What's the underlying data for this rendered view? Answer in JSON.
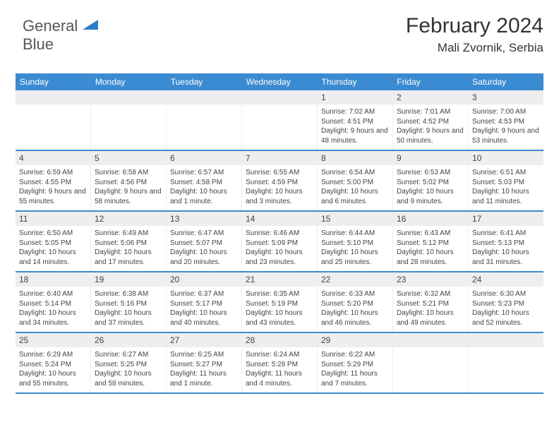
{
  "logo": {
    "line1": "General",
    "line2": "Blue"
  },
  "header": {
    "title": "February 2024",
    "location": "Mali Zvornik, Serbia"
  },
  "daynames": [
    "Sunday",
    "Monday",
    "Tuesday",
    "Wednesday",
    "Thursday",
    "Friday",
    "Saturday"
  ],
  "colors": {
    "header_bg": "#3b8bd2",
    "daynum_bg": "#eeeeee",
    "week_border": "#3b8bd2",
    "text": "#444444"
  },
  "weeks": [
    [
      {
        "n": "",
        "s": "",
        "ss": "",
        "d": ""
      },
      {
        "n": "",
        "s": "",
        "ss": "",
        "d": ""
      },
      {
        "n": "",
        "s": "",
        "ss": "",
        "d": ""
      },
      {
        "n": "",
        "s": "",
        "ss": "",
        "d": ""
      },
      {
        "n": "1",
        "s": "Sunrise: 7:02 AM",
        "ss": "Sunset: 4:51 PM",
        "d": "Daylight: 9 hours and 48 minutes."
      },
      {
        "n": "2",
        "s": "Sunrise: 7:01 AM",
        "ss": "Sunset: 4:52 PM",
        "d": "Daylight: 9 hours and 50 minutes."
      },
      {
        "n": "3",
        "s": "Sunrise: 7:00 AM",
        "ss": "Sunset: 4:53 PM",
        "d": "Daylight: 9 hours and 53 minutes."
      }
    ],
    [
      {
        "n": "4",
        "s": "Sunrise: 6:59 AM",
        "ss": "Sunset: 4:55 PM",
        "d": "Daylight: 9 hours and 55 minutes."
      },
      {
        "n": "5",
        "s": "Sunrise: 6:58 AM",
        "ss": "Sunset: 4:56 PM",
        "d": "Daylight: 9 hours and 58 minutes."
      },
      {
        "n": "6",
        "s": "Sunrise: 6:57 AM",
        "ss": "Sunset: 4:58 PM",
        "d": "Daylight: 10 hours and 1 minute."
      },
      {
        "n": "7",
        "s": "Sunrise: 6:55 AM",
        "ss": "Sunset: 4:59 PM",
        "d": "Daylight: 10 hours and 3 minutes."
      },
      {
        "n": "8",
        "s": "Sunrise: 6:54 AM",
        "ss": "Sunset: 5:00 PM",
        "d": "Daylight: 10 hours and 6 minutes."
      },
      {
        "n": "9",
        "s": "Sunrise: 6:53 AM",
        "ss": "Sunset: 5:02 PM",
        "d": "Daylight: 10 hours and 9 minutes."
      },
      {
        "n": "10",
        "s": "Sunrise: 6:51 AM",
        "ss": "Sunset: 5:03 PM",
        "d": "Daylight: 10 hours and 11 minutes."
      }
    ],
    [
      {
        "n": "11",
        "s": "Sunrise: 6:50 AM",
        "ss": "Sunset: 5:05 PM",
        "d": "Daylight: 10 hours and 14 minutes."
      },
      {
        "n": "12",
        "s": "Sunrise: 6:49 AM",
        "ss": "Sunset: 5:06 PM",
        "d": "Daylight: 10 hours and 17 minutes."
      },
      {
        "n": "13",
        "s": "Sunrise: 6:47 AM",
        "ss": "Sunset: 5:07 PM",
        "d": "Daylight: 10 hours and 20 minutes."
      },
      {
        "n": "14",
        "s": "Sunrise: 6:46 AM",
        "ss": "Sunset: 5:09 PM",
        "d": "Daylight: 10 hours and 23 minutes."
      },
      {
        "n": "15",
        "s": "Sunrise: 6:44 AM",
        "ss": "Sunset: 5:10 PM",
        "d": "Daylight: 10 hours and 25 minutes."
      },
      {
        "n": "16",
        "s": "Sunrise: 6:43 AM",
        "ss": "Sunset: 5:12 PM",
        "d": "Daylight: 10 hours and 28 minutes."
      },
      {
        "n": "17",
        "s": "Sunrise: 6:41 AM",
        "ss": "Sunset: 5:13 PM",
        "d": "Daylight: 10 hours and 31 minutes."
      }
    ],
    [
      {
        "n": "18",
        "s": "Sunrise: 6:40 AM",
        "ss": "Sunset: 5:14 PM",
        "d": "Daylight: 10 hours and 34 minutes."
      },
      {
        "n": "19",
        "s": "Sunrise: 6:38 AM",
        "ss": "Sunset: 5:16 PM",
        "d": "Daylight: 10 hours and 37 minutes."
      },
      {
        "n": "20",
        "s": "Sunrise: 6:37 AM",
        "ss": "Sunset: 5:17 PM",
        "d": "Daylight: 10 hours and 40 minutes."
      },
      {
        "n": "21",
        "s": "Sunrise: 6:35 AM",
        "ss": "Sunset: 5:19 PM",
        "d": "Daylight: 10 hours and 43 minutes."
      },
      {
        "n": "22",
        "s": "Sunrise: 6:33 AM",
        "ss": "Sunset: 5:20 PM",
        "d": "Daylight: 10 hours and 46 minutes."
      },
      {
        "n": "23",
        "s": "Sunrise: 6:32 AM",
        "ss": "Sunset: 5:21 PM",
        "d": "Daylight: 10 hours and 49 minutes."
      },
      {
        "n": "24",
        "s": "Sunrise: 6:30 AM",
        "ss": "Sunset: 5:23 PM",
        "d": "Daylight: 10 hours and 52 minutes."
      }
    ],
    [
      {
        "n": "25",
        "s": "Sunrise: 6:29 AM",
        "ss": "Sunset: 5:24 PM",
        "d": "Daylight: 10 hours and 55 minutes."
      },
      {
        "n": "26",
        "s": "Sunrise: 6:27 AM",
        "ss": "Sunset: 5:25 PM",
        "d": "Daylight: 10 hours and 58 minutes."
      },
      {
        "n": "27",
        "s": "Sunrise: 6:25 AM",
        "ss": "Sunset: 5:27 PM",
        "d": "Daylight: 11 hours and 1 minute."
      },
      {
        "n": "28",
        "s": "Sunrise: 6:24 AM",
        "ss": "Sunset: 5:28 PM",
        "d": "Daylight: 11 hours and 4 minutes."
      },
      {
        "n": "29",
        "s": "Sunrise: 6:22 AM",
        "ss": "Sunset: 5:29 PM",
        "d": "Daylight: 11 hours and 7 minutes."
      },
      {
        "n": "",
        "s": "",
        "ss": "",
        "d": ""
      },
      {
        "n": "",
        "s": "",
        "ss": "",
        "d": ""
      }
    ]
  ]
}
